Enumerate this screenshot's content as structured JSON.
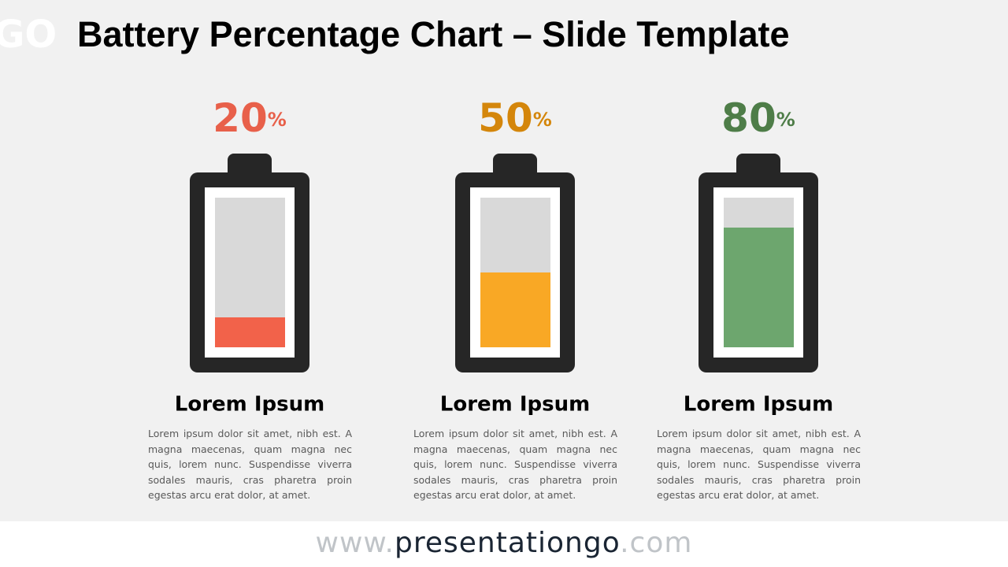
{
  "chart_data": {
    "type": "battery",
    "title": "Battery Percentage Chart – Slide Template",
    "logo": "GO",
    "unit": "%",
    "ylim": [
      0,
      100
    ],
    "items": [
      {
        "name": "Lorem Ipsum",
        "value": 20,
        "color": "#F2624A",
        "label_color": "#E8604A",
        "text": "Lorem ipsum dolor sit amet, nibh est. A magna maecenas, quam magna nec quis, lorem nunc. Suspendisse viverra sodales mauris, cras pharetra proin egestas arcu erat dolor, at amet."
      },
      {
        "name": "Lorem Ipsum",
        "value": 50,
        "color": "#F9A825",
        "label_color": "#D4860B",
        "text": "Lorem ipsum dolor sit amet, nibh est. A magna maecenas, quam magna nec quis, lorem nunc. Suspendisse viverra sodales mauris, cras pharetra proin egestas arcu erat dolor, at amet."
      },
      {
        "name": "Lorem Ipsum",
        "value": 80,
        "color": "#6DA66E",
        "label_color": "#4E7D48",
        "text": "Lorem ipsum dolor sit amet, nibh est. A magna maecenas, quam magna nec quis, lorem nunc. Suspendisse viverra sodales mauris, cras pharetra proin egestas arcu erat dolor, at amet."
      }
    ],
    "footer": [
      "www.",
      "presentationgo",
      ".com"
    ]
  }
}
